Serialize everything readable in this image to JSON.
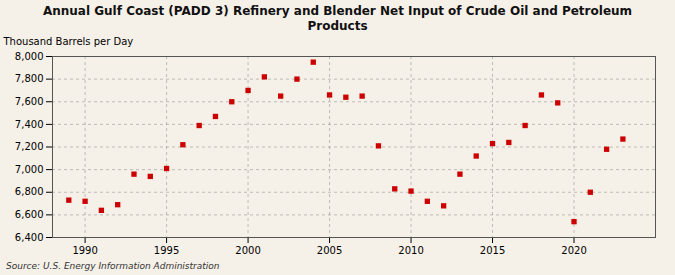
{
  "chart_data": {
    "type": "scatter",
    "title": "Annual Gulf Coast (PADD 3) Refinery and Blender Net Input of Crude Oil and Petroleum\nProducts",
    "ylabel": "Thousand Barrels per Day",
    "source": "Source: U.S. Energy Information Administration",
    "x": [
      1989,
      1990,
      1991,
      1992,
      1993,
      1994,
      1995,
      1996,
      1997,
      1998,
      1999,
      2000,
      2001,
      2002,
      2003,
      2004,
      2005,
      2006,
      2007,
      2008,
      2009,
      2010,
      2011,
      2012,
      2013,
      2014,
      2015,
      2016,
      2017,
      2018,
      2019,
      2020,
      2021,
      2022,
      2023
    ],
    "values": [
      6730,
      6720,
      6640,
      6690,
      6960,
      6940,
      7010,
      7220,
      7390,
      7470,
      7600,
      7700,
      7820,
      7650,
      7800,
      7950,
      7660,
      7640,
      7650,
      7210,
      6830,
      6810,
      6720,
      6680,
      6960,
      7120,
      7230,
      7240,
      7390,
      7660,
      7590,
      6540,
      6800,
      7180,
      7270
    ],
    "color": "#cc0000",
    "marker": "square",
    "xlim": [
      1988,
      2025
    ],
    "ylim": [
      6400,
      8000
    ],
    "xticks": [
      1990,
      1995,
      2000,
      2005,
      2010,
      2015,
      2020
    ],
    "yticks": [
      {
        "value": 6400,
        "label": "6,400"
      },
      {
        "value": 6600,
        "label": "6,600"
      },
      {
        "value": 6800,
        "label": "6,800"
      },
      {
        "value": 7000,
        "label": "7,000"
      },
      {
        "value": 7200,
        "label": "7,200"
      },
      {
        "value": 7400,
        "label": "7,400"
      },
      {
        "value": 7600,
        "label": "7,600"
      },
      {
        "value": 7800,
        "label": "7,800"
      },
      {
        "value": 8000,
        "label": "8,000"
      }
    ],
    "grid": true
  }
}
